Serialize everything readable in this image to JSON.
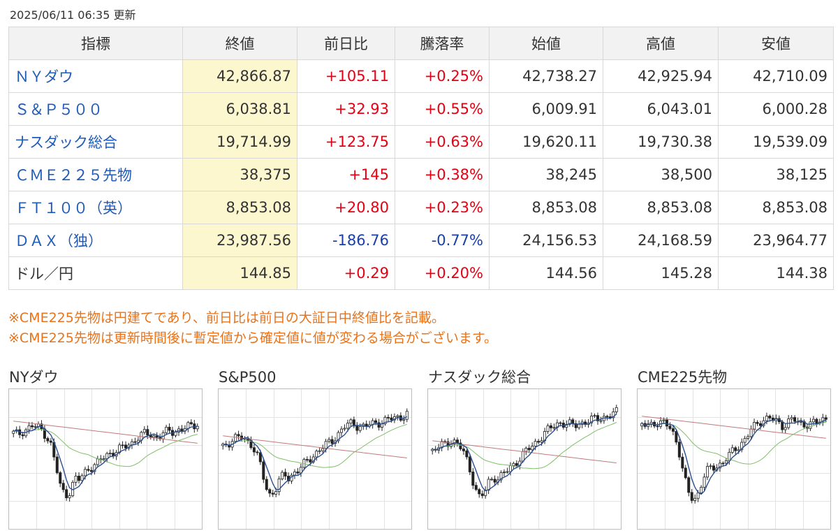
{
  "updated": "2025/06/11 06:35 更新",
  "table": {
    "headers": [
      "指標",
      "終値",
      "前日比",
      "騰落率",
      "始値",
      "高値",
      "安値"
    ],
    "rows": [
      {
        "name": "ＮＹダウ",
        "link": true,
        "close": "42,866.87",
        "change": "+105.11",
        "rate": "+0.25%",
        "open": "42,738.27",
        "high": "42,925.94",
        "low": "42,710.09",
        "dir": "pos"
      },
      {
        "name": "Ｓ＆Ｐ５００",
        "link": true,
        "close": "6,038.81",
        "change": "+32.93",
        "rate": "+0.55%",
        "open": "6,009.91",
        "high": "6,043.01",
        "low": "6,000.28",
        "dir": "pos"
      },
      {
        "name": "ナスダック総合",
        "link": true,
        "close": "19,714.99",
        "change": "+123.75",
        "rate": "+0.63%",
        "open": "19,620.11",
        "high": "19,730.38",
        "low": "19,539.09",
        "dir": "pos"
      },
      {
        "name": "ＣＭＥ２２５先物",
        "link": true,
        "close": "38,375",
        "change": "+145",
        "rate": "+0.38%",
        "open": "38,245",
        "high": "38,500",
        "low": "38,125",
        "dir": "pos"
      },
      {
        "name": "ＦＴ１００（英）",
        "link": true,
        "close": "8,853.08",
        "change": "+20.80",
        "rate": "+0.23%",
        "open": "8,853.08",
        "high": "8,853.08",
        "low": "8,853.08",
        "dir": "pos"
      },
      {
        "name": "ＤＡＸ（独）",
        "link": true,
        "close": "23,987.56",
        "change": "-186.76",
        "rate": "-0.77%",
        "open": "24,156.53",
        "high": "24,168.59",
        "low": "23,964.77",
        "dir": "neg"
      },
      {
        "name": "ドル／円",
        "link": false,
        "close": "144.85",
        "change": "+0.29",
        "rate": "+0.20%",
        "open": "144.56",
        "high": "145.28",
        "low": "144.38",
        "dir": "pos"
      }
    ]
  },
  "notes": [
    "※CME225先物は円建てであり、前日比は前日の大証日中終値比を記載。",
    "※CME225先物は更新時間後に暫定値から確定値に値が変わる場合がございます。"
  ],
  "charts": [
    {
      "title": "NYダウ",
      "shape": [
        0.72,
        0.71,
        0.74,
        0.76,
        0.78,
        0.77,
        0.75,
        0.7,
        0.62,
        0.45,
        0.28,
        0.22,
        0.25,
        0.35,
        0.34,
        0.4,
        0.44,
        0.46,
        0.48,
        0.52,
        0.55,
        0.57,
        0.58,
        0.6,
        0.62,
        0.64,
        0.68,
        0.7,
        0.72,
        0.71,
        0.69,
        0.7,
        0.72,
        0.74,
        0.73,
        0.75,
        0.76,
        0.77,
        0.78,
        0.8
      ]
    },
    {
      "title": "S&P500",
      "shape": [
        0.62,
        0.64,
        0.66,
        0.68,
        0.69,
        0.67,
        0.63,
        0.56,
        0.45,
        0.3,
        0.22,
        0.25,
        0.34,
        0.38,
        0.36,
        0.4,
        0.42,
        0.46,
        0.5,
        0.54,
        0.57,
        0.6,
        0.63,
        0.66,
        0.7,
        0.74,
        0.78,
        0.8,
        0.79,
        0.78,
        0.77,
        0.79,
        0.8,
        0.81,
        0.82,
        0.83,
        0.84,
        0.85,
        0.86,
        0.88
      ]
    },
    {
      "title": "ナスダック総合",
      "shape": [
        0.58,
        0.6,
        0.62,
        0.64,
        0.66,
        0.65,
        0.6,
        0.53,
        0.42,
        0.28,
        0.2,
        0.23,
        0.33,
        0.37,
        0.35,
        0.39,
        0.42,
        0.46,
        0.5,
        0.54,
        0.58,
        0.61,
        0.65,
        0.69,
        0.73,
        0.76,
        0.79,
        0.81,
        0.8,
        0.79,
        0.78,
        0.8,
        0.81,
        0.82,
        0.83,
        0.84,
        0.85,
        0.86,
        0.87,
        0.89
      ]
    },
    {
      "title": "CME225先物",
      "shape": [
        0.78,
        0.79,
        0.8,
        0.81,
        0.8,
        0.79,
        0.77,
        0.7,
        0.55,
        0.35,
        0.22,
        0.18,
        0.24,
        0.36,
        0.42,
        0.44,
        0.46,
        0.48,
        0.52,
        0.56,
        0.6,
        0.64,
        0.68,
        0.74,
        0.78,
        0.82,
        0.84,
        0.85,
        0.82,
        0.8,
        0.78,
        0.82,
        0.84,
        0.8,
        0.79,
        0.8,
        0.81,
        0.8,
        0.82,
        0.84
      ]
    }
  ],
  "colors": {
    "link": "#1e5bb8",
    "up": "#e60012",
    "down": "#1a3fa6",
    "note": "#e8731a",
    "close_bg": "#fcf7cf",
    "ma_short": "#2a4f8f",
    "ma_mid": "#7fbf6a",
    "ma_long": "#c27a7a"
  }
}
